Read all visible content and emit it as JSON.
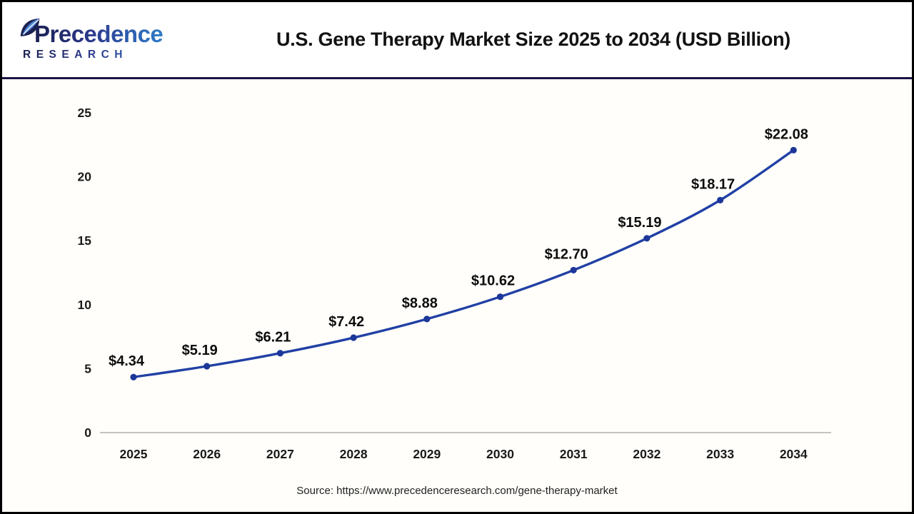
{
  "header": {
    "logo": {
      "line1": "Precedence",
      "line2": "RESEARCH"
    },
    "title": "U.S. Gene Therapy Market Size 2025 to 2034 (USD Billion)"
  },
  "chart_data": {
    "type": "line",
    "title": "U.S. Gene Therapy Market Size 2025 to 2034 (USD Billion)",
    "categories": [
      "2025",
      "2026",
      "2027",
      "2028",
      "2029",
      "2030",
      "2031",
      "2032",
      "2033",
      "2034"
    ],
    "values": [
      4.34,
      5.19,
      6.21,
      7.42,
      8.88,
      10.62,
      12.7,
      15.19,
      18.17,
      22.08
    ],
    "point_labels": [
      "$4.34",
      "$5.19",
      "$6.21",
      "$7.42",
      "$8.88",
      "$10.62",
      "$12.70",
      "$15.19",
      "$18.17",
      "$22.08"
    ],
    "xlabel": "",
    "ylabel": "",
    "ylim": [
      0,
      25
    ],
    "yticks": [
      "0",
      "5",
      "10",
      "15",
      "20",
      "25"
    ],
    "grid": false,
    "legend": "none",
    "line_color": "#2140a5",
    "marker_color": "#1d3699",
    "label_color": "#0d0d0d"
  },
  "footer": {
    "source": "Source: https://www.precedenceresearch.com/gene-therapy-market"
  },
  "colors": {
    "frame_border": "#000000",
    "header_divider": "#1a1344",
    "brand_dark": "#1c2153",
    "brand_blue": "#2e7cc9",
    "axis_line": "#c4c4c4",
    "tick_text": "#1a1a1a",
    "chart_background": "#fffefa"
  }
}
